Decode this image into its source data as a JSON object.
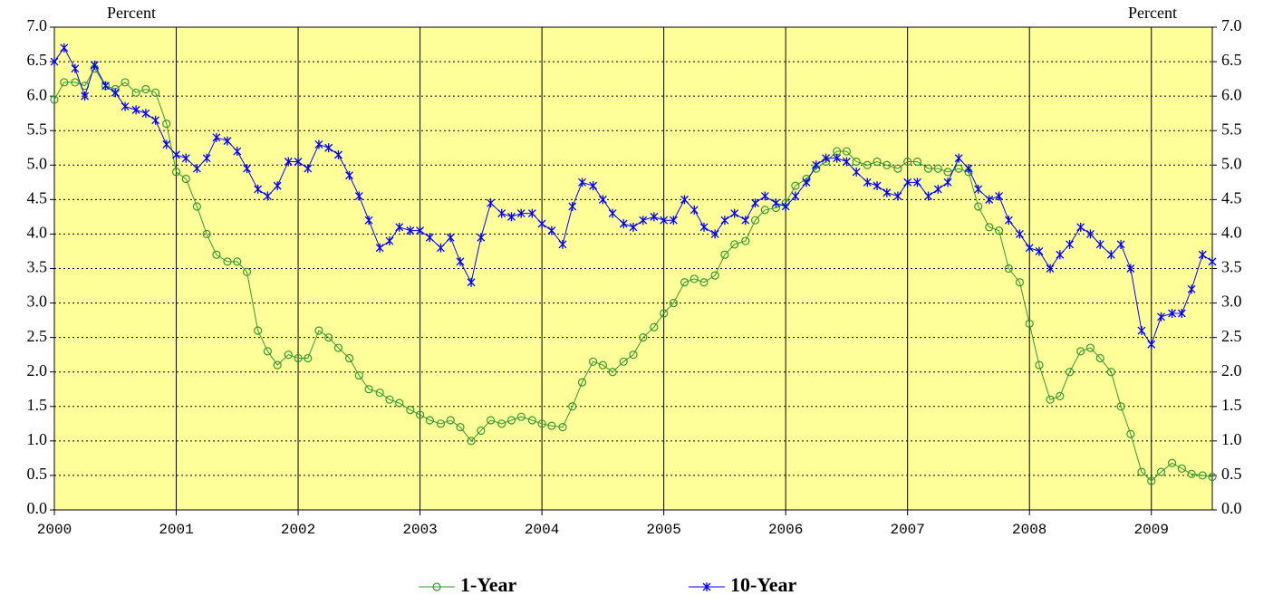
{
  "chart_data": {
    "type": "line",
    "y_label": "Percent",
    "y2_label": "Percent",
    "x": [
      2000,
      2000.08,
      2000.17,
      2000.25,
      2000.33,
      2000.42,
      2000.5,
      2000.58,
      2000.67,
      2000.75,
      2000.83,
      2000.92,
      2001,
      2001.08,
      2001.17,
      2001.25,
      2001.33,
      2001.42,
      2001.5,
      2001.58,
      2001.67,
      2001.75,
      2001.83,
      2001.92,
      2002,
      2002.08,
      2002.17,
      2002.25,
      2002.33,
      2002.42,
      2002.5,
      2002.58,
      2002.67,
      2002.75,
      2002.83,
      2002.92,
      2003,
      2003.08,
      2003.17,
      2003.25,
      2003.33,
      2003.42,
      2003.5,
      2003.58,
      2003.67,
      2003.75,
      2003.83,
      2003.92,
      2004,
      2004.08,
      2004.17,
      2004.25,
      2004.33,
      2004.42,
      2004.5,
      2004.58,
      2004.67,
      2004.75,
      2004.83,
      2004.92,
      2005,
      2005.08,
      2005.17,
      2005.25,
      2005.33,
      2005.42,
      2005.5,
      2005.58,
      2005.67,
      2005.75,
      2005.83,
      2005.92,
      2006,
      2006.08,
      2006.17,
      2006.25,
      2006.33,
      2006.42,
      2006.5,
      2006.58,
      2006.67,
      2006.75,
      2006.83,
      2006.92,
      2007,
      2007.08,
      2007.17,
      2007.25,
      2007.33,
      2007.42,
      2007.5,
      2007.58,
      2007.67,
      2007.75,
      2007.83,
      2007.92,
      2008,
      2008.08,
      2008.17,
      2008.25,
      2008.33,
      2008.42,
      2008.5,
      2008.58,
      2008.67,
      2008.75,
      2008.83,
      2008.92,
      2009,
      2009.08,
      2009.17,
      2009.25,
      2009.33,
      2009.42,
      2009.5
    ],
    "series": [
      {
        "name": "1-Year",
        "color": "#339933",
        "marker": "circle",
        "values": [
          5.95,
          6.2,
          6.2,
          6.15,
          6.4,
          6.15,
          6.1,
          6.2,
          6.05,
          6.1,
          6.05,
          5.6,
          4.9,
          4.8,
          4.4,
          4.0,
          3.7,
          3.6,
          3.6,
          3.45,
          2.6,
          2.3,
          2.1,
          2.25,
          2.2,
          2.2,
          2.6,
          2.5,
          2.35,
          2.2,
          1.95,
          1.75,
          1.7,
          1.6,
          1.55,
          1.45,
          1.38,
          1.3,
          1.25,
          1.3,
          1.2,
          1.0,
          1.15,
          1.3,
          1.25,
          1.3,
          1.35,
          1.3,
          1.25,
          1.22,
          1.2,
          1.5,
          1.85,
          2.15,
          2.1,
          2.0,
          2.15,
          2.25,
          2.5,
          2.65,
          2.85,
          3.0,
          3.3,
          3.35,
          3.3,
          3.4,
          3.7,
          3.85,
          3.9,
          4.2,
          4.35,
          4.38,
          4.45,
          4.7,
          4.8,
          4.95,
          5.05,
          5.2,
          5.2,
          5.05,
          5.0,
          5.05,
          5.0,
          4.95,
          5.05,
          5.05,
          4.95,
          4.95,
          4.9,
          4.95,
          4.9,
          4.4,
          4.1,
          4.05,
          3.5,
          3.3,
          2.7,
          2.1,
          1.6,
          1.65,
          2.0,
          2.3,
          2.35,
          2.2,
          2.0,
          1.5,
          1.1,
          0.55,
          0.42,
          0.55,
          0.68,
          0.6,
          0.52,
          0.5,
          0.48
        ]
      },
      {
        "name": "10-Year",
        "color": "#0000ff",
        "marker": "star",
        "values": [
          6.5,
          6.7,
          6.4,
          6.0,
          6.45,
          6.15,
          6.05,
          5.85,
          5.8,
          5.75,
          5.65,
          5.3,
          5.15,
          5.1,
          4.95,
          5.1,
          5.4,
          5.35,
          5.2,
          4.95,
          4.65,
          4.55,
          4.7,
          5.05,
          5.05,
          4.95,
          5.3,
          5.25,
          5.15,
          4.85,
          4.55,
          4.2,
          3.8,
          3.9,
          4.1,
          4.05,
          4.05,
          3.95,
          3.8,
          3.95,
          3.6,
          3.3,
          3.95,
          4.45,
          4.3,
          4.25,
          4.3,
          4.3,
          4.15,
          4.05,
          3.85,
          4.4,
          4.75,
          4.7,
          4.5,
          4.3,
          4.15,
          4.1,
          4.2,
          4.25,
          4.2,
          4.2,
          4.5,
          4.35,
          4.1,
          4.0,
          4.2,
          4.3,
          4.2,
          4.45,
          4.55,
          4.45,
          4.4,
          4.55,
          4.75,
          5.0,
          5.1,
          5.1,
          5.05,
          4.9,
          4.75,
          4.7,
          4.6,
          4.55,
          4.75,
          4.75,
          4.55,
          4.65,
          4.75,
          5.1,
          4.95,
          4.65,
          4.5,
          4.55,
          4.2,
          4.0,
          3.8,
          3.75,
          3.5,
          3.7,
          3.85,
          4.1,
          4.0,
          3.85,
          3.7,
          3.85,
          3.5,
          2.6,
          2.4,
          2.8,
          2.85,
          2.85,
          3.2,
          3.7,
          3.6
        ]
      }
    ],
    "xlim": [
      2000,
      2009.5
    ],
    "xticks": [
      2000,
      2001,
      2002,
      2003,
      2004,
      2005,
      2006,
      2007,
      2008,
      2009
    ],
    "ylim": [
      0,
      7
    ],
    "yticks": [
      {
        "value": 0,
        "label": "0.0"
      },
      {
        "value": 0.5,
        "label": "0.5"
      },
      {
        "value": 1,
        "label": "1.0"
      },
      {
        "value": 1.5,
        "label": "1.5"
      },
      {
        "value": 2,
        "label": "2.0"
      },
      {
        "value": 2.5,
        "label": "2.5"
      },
      {
        "value": 3,
        "label": "3.0"
      },
      {
        "value": 3.5,
        "label": "3.5"
      },
      {
        "value": 4,
        "label": "4.0"
      },
      {
        "value": 4.5,
        "label": "4.5"
      },
      {
        "value": 5,
        "label": "5.0"
      },
      {
        "value": 5.5,
        "label": "5.5"
      },
      {
        "value": 6,
        "label": "6.0"
      },
      {
        "value": 6.5,
        "label": "6.5"
      },
      {
        "value": 7,
        "label": "7.0"
      }
    ],
    "y2lim": [
      0,
      7
    ],
    "y2ticks": [
      {
        "value": 0,
        "label": "0.0"
      },
      {
        "value": 0.5,
        "label": "0.5"
      },
      {
        "value": 1,
        "label": "1.0"
      },
      {
        "value": 1.5,
        "label": "1.5"
      },
      {
        "value": 2,
        "label": "2.0"
      },
      {
        "value": 2.5,
        "label": "2.5"
      },
      {
        "value": 3,
        "label": "3.0"
      },
      {
        "value": 3.5,
        "label": "3.5"
      },
      {
        "value": 4,
        "label": "4.0"
      },
      {
        "value": 4.5,
        "label": "4.5"
      },
      {
        "value": 5,
        "label": "5.0"
      },
      {
        "value": 5.5,
        "label": "5.5"
      },
      {
        "value": 6,
        "label": "6.0"
      },
      {
        "value": 6.5,
        "label": "6.5"
      },
      {
        "value": 7,
        "label": "7.0"
      }
    ],
    "grid": true,
    "background": "#ffff99",
    "legend": "bottom"
  }
}
